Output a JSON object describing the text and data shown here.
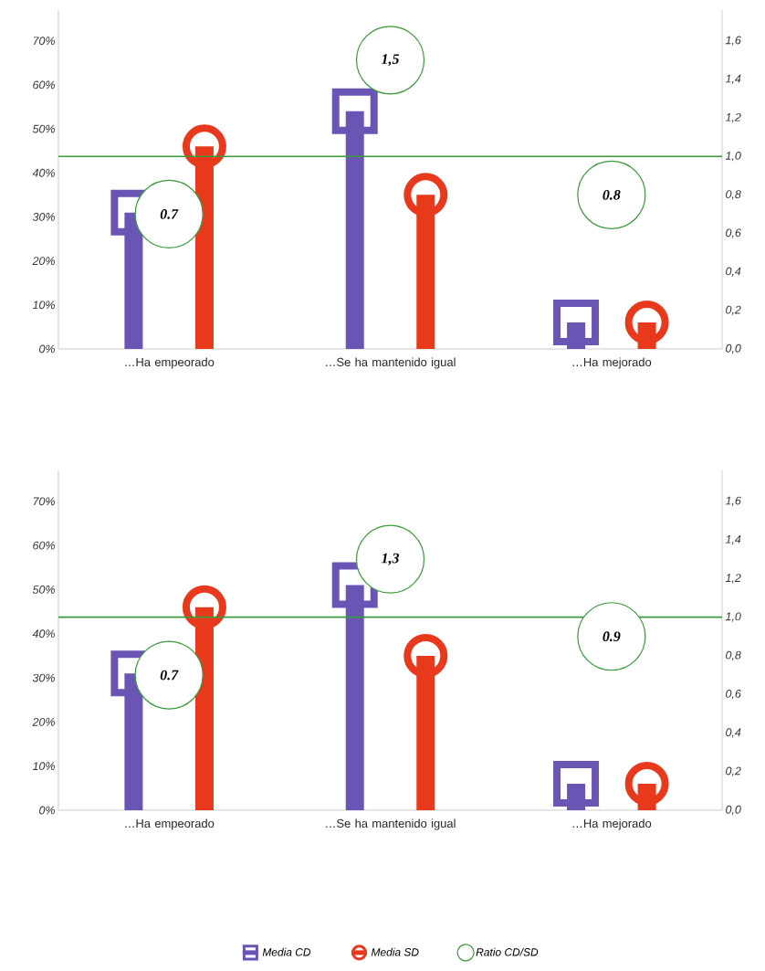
{
  "chart_data": [
    {
      "type": "lollipop",
      "categories": [
        "…Ha empeorado",
        "…Se ha mantenido igual",
        "…Ha mejorado"
      ],
      "ylim": [
        0,
        77
      ],
      "yticks": [
        {
          "value": 0,
          "label": "0%"
        },
        {
          "value": 10,
          "label": "10%"
        },
        {
          "value": 20,
          "label": "20%"
        },
        {
          "value": 30,
          "label": "30%"
        },
        {
          "value": 40,
          "label": "40%"
        },
        {
          "value": 50,
          "label": "50%"
        },
        {
          "value": 60,
          "label": "60%"
        },
        {
          "value": 70,
          "label": "70%"
        }
      ],
      "y2lim": [
        0,
        1.76
      ],
      "y2ticks": [
        {
          "value": 0,
          "label": "0,0"
        },
        {
          "value": 0.2,
          "label": "0,2"
        },
        {
          "value": 0.4,
          "label": "0,4"
        },
        {
          "value": 0.6,
          "label": "0,6"
        },
        {
          "value": 0.8,
          "label": "0,8"
        },
        {
          "value": 1.0,
          "label": "1,0"
        },
        {
          "value": 1.2,
          "label": "1,2"
        },
        {
          "value": 1.4,
          "label": "1,4"
        },
        {
          "value": 1.6,
          "label": "1,6"
        }
      ],
      "series": [
        {
          "color": "#6a55b5",
          "marker": "square",
          "values": [
            31,
            54,
            6
          ]
        },
        {
          "color": "#e8391d",
          "marker": "circle",
          "values": [
            46,
            35,
            6
          ]
        },
        {
          "type": "scatter",
          "axis": "y2",
          "color": "#3a9a3a",
          "marker": "circle",
          "values": [
            0.7,
            1.5,
            0.8
          ],
          "value_labels": [
            "0.7",
            "1,5",
            "0.8"
          ]
        }
      ],
      "ref_lines": [
        {
          "axis": "y2",
          "value": 1.0,
          "color": "#3a9a3a"
        }
      ]
    },
    {
      "type": "lollipop",
      "categories": [
        "…Ha empeorado",
        "…Se ha mantenido igual",
        "…Ha mejorado"
      ],
      "ylim": [
        0,
        77
      ],
      "yticks": [
        {
          "value": 0,
          "label": "0%"
        },
        {
          "value": 10,
          "label": "10%"
        },
        {
          "value": 20,
          "label": "20%"
        },
        {
          "value": 30,
          "label": "30%"
        },
        {
          "value": 40,
          "label": "40%"
        },
        {
          "value": 50,
          "label": "50%"
        },
        {
          "value": 60,
          "label": "60%"
        },
        {
          "value": 70,
          "label": "70%"
        }
      ],
      "y2lim": [
        0,
        1.76
      ],
      "y2ticks": [
        {
          "value": 0,
          "label": "0,0"
        },
        {
          "value": 0.2,
          "label": "0,2"
        },
        {
          "value": 0.4,
          "label": "0,4"
        },
        {
          "value": 0.6,
          "label": "0,6"
        },
        {
          "value": 0.8,
          "label": "0,8"
        },
        {
          "value": 1.0,
          "label": "1,0"
        },
        {
          "value": 1.2,
          "label": "1,2"
        },
        {
          "value": 1.4,
          "label": "1,4"
        },
        {
          "value": 1.6,
          "label": "1,6"
        }
      ],
      "series": [
        {
          "name": "Media CD",
          "color": "#6a55b5",
          "marker": "square",
          "values": [
            31,
            51,
            6
          ]
        },
        {
          "name": "Media SD",
          "color": "#e8391d",
          "marker": "circle",
          "values": [
            46,
            35,
            6
          ]
        },
        {
          "name": "Ratio CD/SD",
          "type": "scatter",
          "axis": "y2",
          "color": "#3a9a3a",
          "marker": "circle",
          "values": [
            0.7,
            1.3,
            0.9
          ],
          "value_labels": [
            "0.7",
            "1,3",
            "0.9"
          ]
        }
      ],
      "ref_lines": [
        {
          "axis": "y2",
          "value": 1.0,
          "color": "#3a9a3a"
        }
      ],
      "legend": "bottom"
    }
  ]
}
